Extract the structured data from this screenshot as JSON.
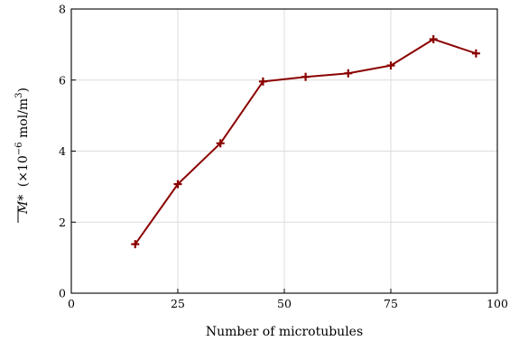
{
  "chart_data": {
    "type": "line",
    "title": "",
    "xlabel": "Number of microtubules",
    "ylabel_main": "M*",
    "ylabel_units": "(×10",
    "ylabel_exp": "−6",
    "ylabel_unit_rest": " mol/m",
    "ylabel_unit_sup": "3",
    "ylabel_close": ")",
    "xlim": [
      0,
      100
    ],
    "ylim": [
      0,
      8
    ],
    "xticks": [
      0,
      25,
      50,
      75,
      100
    ],
    "yticks": [
      0,
      2,
      4,
      6,
      8
    ],
    "grid": true,
    "series": [
      {
        "x": [
          15,
          25,
          35,
          45,
          55,
          65,
          75,
          85,
          95
        ],
        "y": [
          1.38,
          3.07,
          4.22,
          5.96,
          6.09,
          6.19,
          6.41,
          7.15,
          6.75
        ],
        "color": "#8b0000",
        "marker": "plus"
      }
    ]
  }
}
